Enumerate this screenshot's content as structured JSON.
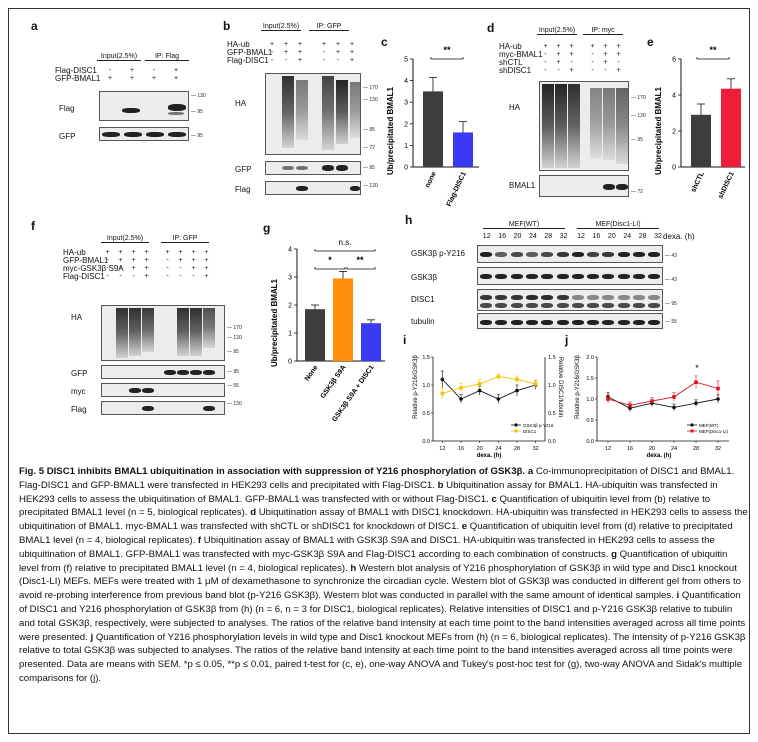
{
  "panels": {
    "a": {
      "label": "a",
      "input_label": "Input(2.5%)",
      "ip_label": "IP: Flag",
      "rows": [
        {
          "name": "Flag-DISC1",
          "signs": [
            "-",
            "+",
            "-",
            "+"
          ]
        },
        {
          "name": "GFP-BMAL1",
          "signs": [
            "+",
            "+",
            "+",
            "+"
          ]
        }
      ],
      "blots": [
        "Flag",
        "GFP"
      ],
      "mw": [
        "130",
        "95",
        "95"
      ]
    },
    "b": {
      "label": "b",
      "input_label": "Input(2.5%)",
      "ip_label": "IP: GFP",
      "rows": [
        {
          "name": "HA-ub",
          "signs": [
            "+",
            "+",
            "+",
            "+",
            "+",
            "+"
          ]
        },
        {
          "name": "GFP-BMAL1",
          "signs": [
            "-",
            "+",
            "+",
            "-",
            "+",
            "+"
          ]
        },
        {
          "name": "Flag-DISC1",
          "signs": [
            "-",
            "-",
            "+",
            "-",
            "-",
            "+"
          ]
        }
      ],
      "blots": [
        "HA",
        "GFP",
        "Flag"
      ],
      "mw": [
        "170",
        "130",
        "95",
        "72",
        "95",
        "130"
      ]
    },
    "c": {
      "label": "c",
      "sig": "**"
    },
    "d": {
      "label": "d",
      "input_label": "Input(2.5%)",
      "ip_label": "IP: myc",
      "rows": [
        {
          "name": "HA-ub",
          "signs": [
            "+",
            "+",
            "+",
            "+",
            "+",
            "+"
          ]
        },
        {
          "name": "myc-BMAL1",
          "signs": [
            "-",
            "+",
            "+",
            "-",
            "+",
            "+"
          ]
        },
        {
          "name": "shCTL",
          "signs": [
            "-",
            "+",
            "-",
            "-",
            "+",
            "-"
          ]
        },
        {
          "name": "shDISC1",
          "signs": [
            "-",
            "-",
            "+",
            "-",
            "-",
            "+"
          ]
        }
      ],
      "blots": [
        "HA",
        "BMAL1"
      ],
      "mw": [
        "170",
        "130",
        "95",
        "72"
      ]
    },
    "e": {
      "label": "e",
      "sig": "**"
    },
    "f": {
      "label": "f",
      "input_label": "Input(2.5%)",
      "ip_label": "IP: GFP",
      "rows": [
        {
          "name": "HA-ub",
          "signs": [
            "+",
            "+",
            "+",
            "+",
            "+",
            "+",
            "+",
            "+"
          ]
        },
        {
          "name": "GFP-BMAL1",
          "signs": [
            "-",
            "+",
            "+",
            "+",
            "-",
            "+",
            "+",
            "+"
          ]
        },
        {
          "name": "myc-GSK3β S9A",
          "signs": [
            "-",
            "-",
            "+",
            "+",
            "-",
            "-",
            "+",
            "+"
          ]
        },
        {
          "name": "Flag-DISC1",
          "signs": [
            "-",
            "-",
            "-",
            "+",
            "-",
            "-",
            "-",
            "+"
          ]
        }
      ],
      "blots": [
        "HA",
        "GFP",
        "myc",
        "Flag"
      ],
      "mw": [
        "170",
        "130",
        "95",
        "95",
        "55",
        "130"
      ]
    },
    "g": {
      "label": "g",
      "sig_ns": "n.s.",
      "sig1": "*",
      "sig2": "**"
    },
    "h": {
      "label": "h",
      "wt_label": "MEF(WT)",
      "ko_label": "MEF(Disc1-LI)",
      "dexa": "dexa. (h)",
      "times": [
        "12",
        "16",
        "20",
        "24",
        "28",
        "32",
        "12",
        "16",
        "20",
        "24",
        "28",
        "32"
      ],
      "blots": [
        "GSK3β p-Y216",
        "GSK3β",
        "DISC1",
        "tubulin"
      ],
      "mw": [
        "43",
        "43",
        "95",
        "55"
      ]
    },
    "i": {
      "label": "i"
    },
    "j": {
      "label": "j",
      "sig": "*"
    }
  },
  "chart_data": [
    {
      "type": "bar",
      "panel": "c",
      "categories": [
        "none",
        "Flag-DISC1"
      ],
      "values": [
        3.5,
        1.6
      ],
      "errors": [
        0.65,
        0.5
      ],
      "colors": [
        "#3d3d3d",
        "#3a3af5"
      ],
      "ylabel": "Ub/precipitated BMAL1",
      "ylim": [
        0,
        5
      ],
      "yticks": [
        0,
        1,
        2,
        3,
        4,
        5
      ]
    },
    {
      "type": "bar",
      "panel": "e",
      "categories": [
        "shCTL",
        "shDISC1"
      ],
      "values": [
        2.9,
        4.35
      ],
      "errors": [
        0.6,
        0.55
      ],
      "colors": [
        "#3d3d3d",
        "#f21c3a"
      ],
      "ylabel": "Ub/precipitated BMAL1",
      "ylim": [
        0,
        6
      ],
      "yticks": [
        0,
        2,
        4,
        6
      ]
    },
    {
      "type": "bar",
      "panel": "g",
      "categories": [
        "None",
        "GSK3β S9A",
        "GSK3β S9A + DISC1"
      ],
      "values": [
        1.85,
        2.95,
        1.35
      ],
      "errors": [
        0.15,
        0.25,
        0.12
      ],
      "colors": [
        "#3d3d3d",
        "#ff8c0a",
        "#3a3af5"
      ],
      "ylabel": "Ub/precipitated BMAL1",
      "ylim": [
        0,
        4
      ],
      "yticks": [
        0,
        1,
        2,
        3,
        4
      ]
    },
    {
      "type": "line",
      "panel": "i",
      "x": [
        12,
        16,
        20,
        24,
        28,
        32
      ],
      "xlabel": "dexa. (h)",
      "ylabel": "Relative p-Y216/GSK3β",
      "ylabel_right": "Relative DISC1/tubulin",
      "ylim": [
        0,
        1.5
      ],
      "yticks": [
        0,
        0.5,
        1.0,
        1.5
      ],
      "series": [
        {
          "name": "GSK3β p-Y216",
          "values": [
            1.1,
            0.75,
            0.9,
            0.75,
            0.9,
            1.0
          ],
          "errors": [
            0.15,
            0.08,
            0.08,
            0.08,
            0.1,
            0.08
          ],
          "color": "#111111"
        },
        {
          "name": "DISC1",
          "values": [
            0.85,
            0.95,
            1.02,
            1.15,
            1.1,
            1.02
          ],
          "errors": [
            0.1,
            0.08,
            0.08,
            0.05,
            0.06,
            0.06
          ],
          "color": "#f5c400"
        }
      ]
    },
    {
      "type": "line",
      "panel": "j",
      "x": [
        12,
        16,
        20,
        24,
        28,
        32
      ],
      "xlabel": "dexa. (h)",
      "ylabel": "Relative p-Y216/GSK3β",
      "ylim": [
        0,
        2.0
      ],
      "yticks": [
        0,
        0.5,
        1.0,
        1.5,
        2.0
      ],
      "series": [
        {
          "name": "MEF(WT)",
          "values": [
            1.05,
            0.78,
            0.9,
            0.8,
            0.9,
            1.0
          ],
          "errors": [
            0.1,
            0.08,
            0.08,
            0.08,
            0.08,
            0.1
          ],
          "color": "#111111"
        },
        {
          "name": "MEF(Disc1-LI)",
          "values": [
            1.0,
            0.85,
            0.95,
            1.05,
            1.4,
            1.25
          ],
          "errors": [
            0.1,
            0.08,
            0.08,
            0.1,
            0.15,
            0.18
          ],
          "color": "#e01020"
        }
      ]
    }
  ],
  "caption": {
    "title": "Fig. 5 DISC1 inhibits BMAL1 ubiquitination in association with suppression of Y216 phosphorylation of GSK3β.",
    "a_lbl": "a",
    "a": "Co-immunoprecipitation of DISC1 and BMAL1. Flag-DISC1 and GFP-BMAL1 were transfected in HEK293 cells and precipitated with Flag-DISC1.",
    "b_lbl": "b",
    "b": "Ubiquitination assay for BMAL1. HA-ubiquitin was transfected in HEK293 cells to assess the ubiquitination of BMAL1. GFP-BMAL1 was transfected with or without Flag-DISC1.",
    "c_lbl": "c",
    "c": "Quantification of ubiquitin level from (b) relative to precipitated BMAL1 level (n = 5, biological replicates).",
    "d_lbl": "d",
    "d": "Ubiquitination assay of BMAL1 with DISC1 knockdown. HA-ubiquitin was transfected in HEK293 cells to assess the ubiquitination of BMAL1. myc-BMAL1 was transfected with shCTL or shDISC1 for knockdown of DISC1.",
    "e_lbl": "e",
    "e": "Quantification of ubiquitin level from (d) relative to precipitated BMAL1 level (n = 4, biological replicates).",
    "f_lbl": "f",
    "f": "Ubiquitination assay of BMAL1 with GSK3β S9A and DISC1. HA-ubiquitin was transfected in HEK293 cells to assess the ubiquitination of BMAL1. GFP-BMAL1 was transfected with myc-GSK3β S9A and Flag-DISC1 according to each combination of constructs.",
    "g_lbl": "g",
    "g": "Quantification of ubiquitin level from (f) relative to precipitated BMAL1 level (n = 4, biological replicates).",
    "h_lbl": "h",
    "h": "Western blot analysis of Y216 phosphorylation of GSK3β in wild type and Disc1 knockout (Disc1-LI) MEFs. MEFs were treated with 1 μM of dexamethasone to synchronize the circadian cycle. Western blot of GSK3β was conducted in different gel from others to avoid re-probing interference from previous band blot (p-Y216 GSK3β). Western blot was conducted in parallel with the same amount of identical samples.",
    "i_lbl": "i",
    "i": "Quantification of DISC1 and Y216 phosphorylation of GSK3β from (h) (n = 6, n = 3 for DISC1, biological replicates). Relative intensities of DISC1 and p-Y216 GSK3β relative to tubulin and total GSK3β, respectively, were subjected to analyses. The ratios of the relative band intensity at each time point to the band intensities averaged across all time points were presented.",
    "j_lbl": "j",
    "j": "Quantification of Y216 phosphorylation levels in wild type and Disc1 knockout MEFs from (h) (n = 6, biological replicates). The intensity of p-Y216 GSK3β relative to total GSK3β was subjected to analyses. The ratios of the relative band intensity at each time point to the band intensities averaged across all time points were presented. Data are means with SEM. *p ≤ 0.05, **p ≤ 0.01, paired t-test for (c, e), one-way ANOVA and Tukey's post-hoc test for (g), two-way ANOVA and Sidak's multiple comparisons for (j)."
  }
}
